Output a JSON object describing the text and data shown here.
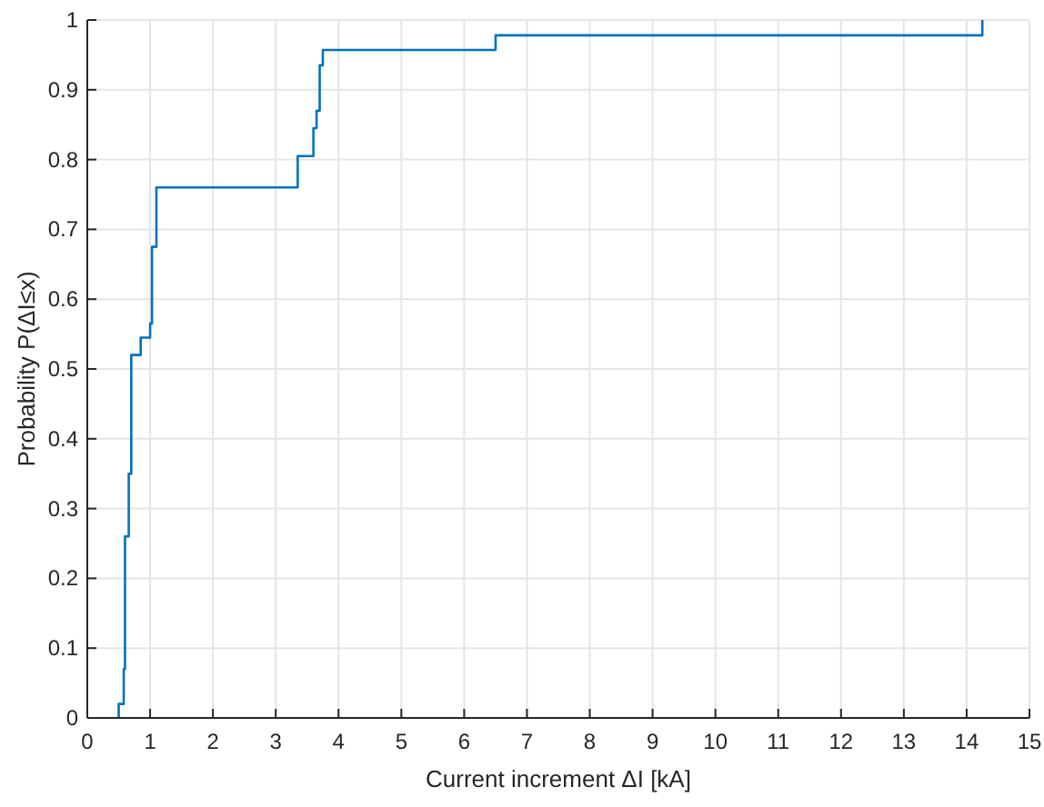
{
  "chart_data": {
    "type": "step",
    "xlabel": "Current increment ΔI [kA]",
    "ylabel": "Probability P(ΔI≤x)",
    "x": [
      0.5,
      0.5,
      0.58,
      0.6,
      0.66,
      0.7,
      0.85,
      1.0,
      1.03,
      1.1,
      3.35,
      3.6,
      3.65,
      3.7,
      3.75,
      6.5,
      14.25
    ],
    "series": [
      {
        "color": "#0072bd",
        "values": [
          0,
          0.02,
          0.07,
          0.26,
          0.35,
          0.52,
          0.545,
          0.565,
          0.675,
          0.76,
          0.805,
          0.845,
          0.87,
          0.935,
          0.957,
          0.978,
          1.0
        ]
      }
    ],
    "xlim": [
      0,
      15
    ],
    "xticks": [
      0,
      1,
      2,
      3,
      4,
      5,
      6,
      7,
      8,
      9,
      10,
      11,
      12,
      13,
      14,
      15
    ],
    "ylim": [
      0,
      1
    ],
    "yticks": [
      0,
      {
        "value": 0.1,
        "label": "0.1"
      },
      {
        "value": 0.2,
        "label": "0.2"
      },
      {
        "value": 0.3,
        "label": "0.3"
      },
      {
        "value": 0.4,
        "label": "0.4"
      },
      {
        "value": 0.5,
        "label": "0.5"
      },
      {
        "value": 0.6,
        "label": "0.6"
      },
      {
        "value": 0.7,
        "label": "0.7"
      },
      {
        "value": 0.8,
        "label": "0.8"
      },
      {
        "value": 0.9,
        "label": "0.9"
      },
      1
    ],
    "grid": true
  }
}
